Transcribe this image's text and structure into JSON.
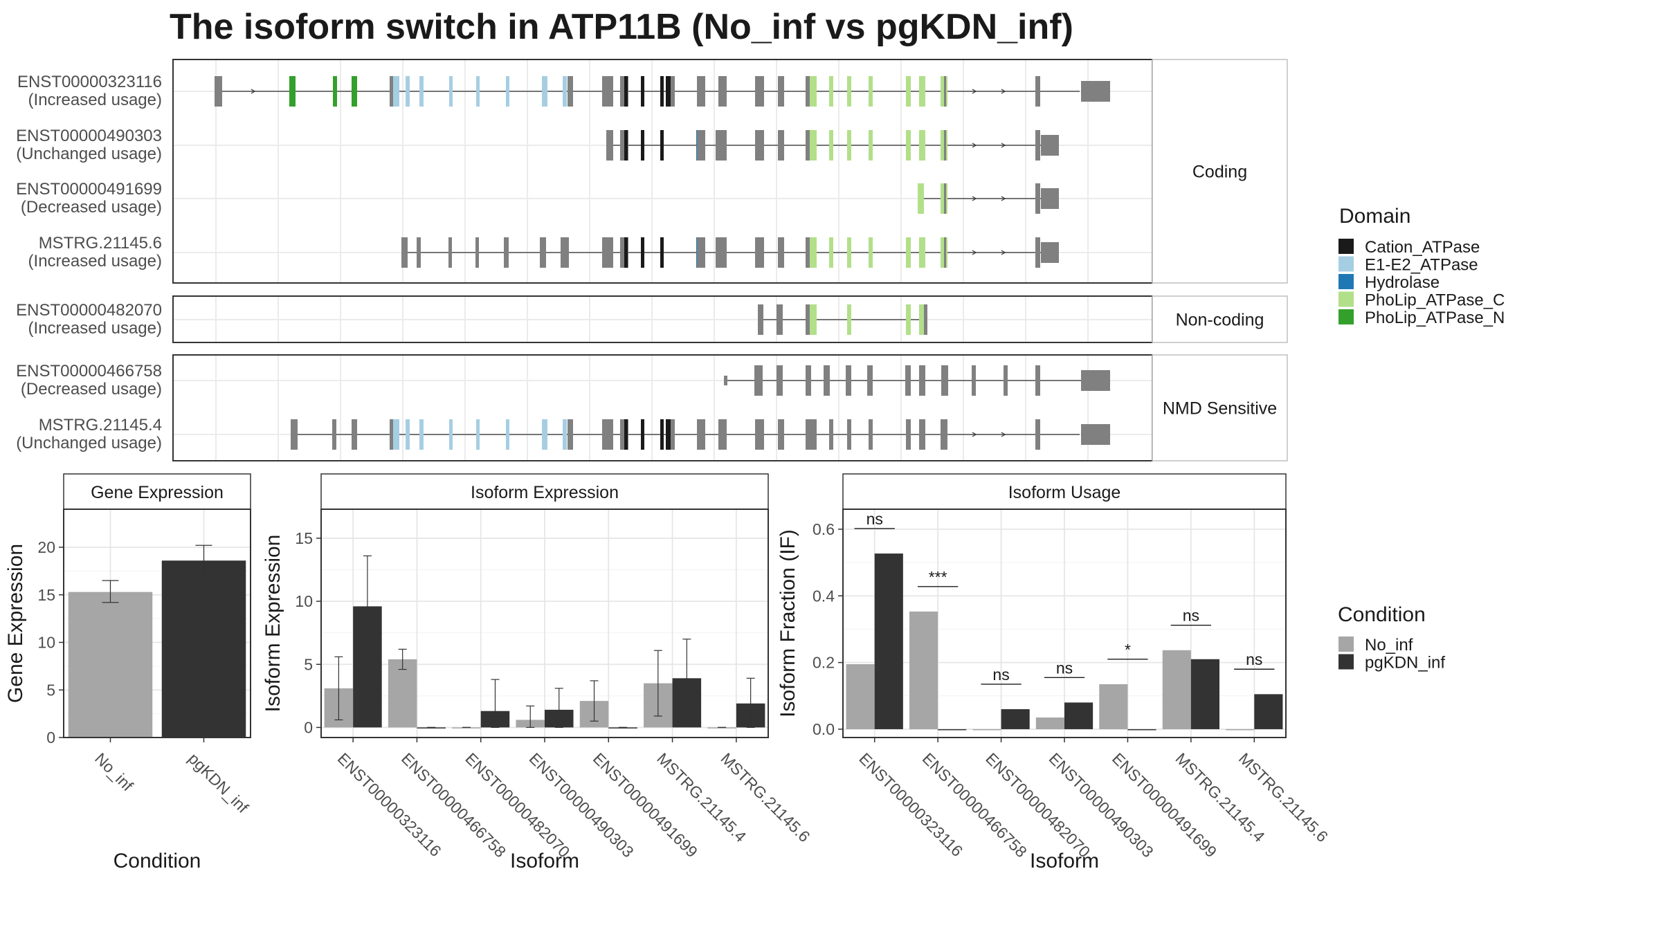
{
  "title": "The isoform switch in ATP11B (No_inf vs pgKDN_inf)",
  "colors": {
    "Cation_ATPase": "#1a1a1a",
    "E1-E2_ATPase": "#a6cee3",
    "Hydrolase": "#1f78b4",
    "PhoLip_ATPase_C": "#b2df8a",
    "PhoLip_ATPase_N": "#33a02c",
    "noDomain": "#808080",
    "No_inf": "#a6a6a6",
    "pgKDN_inf": "#333333"
  },
  "transcripts": {
    "groups": [
      {
        "label": "Coding",
        "rows": [
          {
            "name": "ENST00000323116",
            "usage": "(Increased usage)"
          },
          {
            "name": "ENST00000490303",
            "usage": "(Unchanged usage)"
          },
          {
            "name": "ENST00000491699",
            "usage": "(Decreased usage)"
          },
          {
            "name": "MSTRG.21145.6",
            "usage": "(Increased usage)"
          }
        ]
      },
      {
        "label": "Non-coding",
        "rows": [
          {
            "name": "ENST00000482070",
            "usage": "(Increased usage)"
          }
        ]
      },
      {
        "label": "NMD Sensitive",
        "rows": [
          {
            "name": "ENST00000466758",
            "usage": "(Decreased usage)"
          },
          {
            "name": "MSTRG.21145.4",
            "usage": "(Unchanged usage)"
          }
        ]
      }
    ]
  },
  "legends": {
    "domain": {
      "title": "Domain",
      "items": [
        {
          "label": "Cation_ATPase",
          "color": "#1a1a1a"
        },
        {
          "label": "E1-E2_ATPase",
          "color": "#a6cee3"
        },
        {
          "label": "Hydrolase",
          "color": "#1f78b4"
        },
        {
          "label": "PhoLip_ATPase_C",
          "color": "#b2df8a"
        },
        {
          "label": "PhoLip_ATPase_N",
          "color": "#33a02c"
        }
      ]
    },
    "condition": {
      "title": "Condition",
      "items": [
        {
          "label": "No_inf",
          "color": "#a6a6a6"
        },
        {
          "label": "pgKDN_inf",
          "color": "#333333"
        }
      ]
    }
  },
  "chart_data": [
    {
      "type": "bar",
      "title": "Gene Expression",
      "xlabel": "Condition",
      "ylabel": "Gene Expression",
      "categories": [
        "No_inf",
        "pgKDN_inf"
      ],
      "values": [
        15.3,
        18.6
      ],
      "errors": [
        [
          14.2,
          16.5
        ],
        [
          17.0,
          20.2
        ]
      ],
      "ylim": [
        0,
        24
      ],
      "yticks": [
        "0",
        "5",
        "10",
        "15",
        "20"
      ]
    },
    {
      "type": "bar",
      "title": "Isoform Expression",
      "xlabel": "Isoform",
      "ylabel": "Isoform Expression",
      "categories": [
        "ENST00000323116",
        "ENST00000466758",
        "ENST00000482070",
        "ENST00000490303",
        "ENST00000491699",
        "MSTRG.21145.4",
        "MSTRG.21145.6"
      ],
      "series": [
        {
          "name": "No_inf",
          "values": [
            3.1,
            5.4,
            0.0,
            0.6,
            2.1,
            3.5,
            0.0
          ],
          "errors": [
            [
              0.6,
              5.6
            ],
            [
              4.6,
              6.2
            ],
            [
              0,
              0
            ],
            [
              0.0,
              1.7
            ],
            [
              0.5,
              3.7
            ],
            [
              0.9,
              6.1
            ],
            [
              0,
              0
            ]
          ]
        },
        {
          "name": "pgKDN_inf",
          "values": [
            9.6,
            0.0,
            1.3,
            1.4,
            0.0,
            3.9,
            1.9
          ],
          "errors": [
            [
              5.6,
              13.6
            ],
            [
              0,
              0
            ],
            [
              0.0,
              3.8
            ],
            [
              0.0,
              3.1
            ],
            [
              0,
              0
            ],
            [
              0.5,
              7.0
            ],
            [
              0.0,
              3.9
            ]
          ]
        }
      ],
      "ylim": [
        -0.8,
        17.3
      ],
      "yticks": [
        "0",
        "5",
        "10",
        "15"
      ]
    },
    {
      "type": "bar",
      "title": "Isoform Usage",
      "xlabel": "Isoform",
      "ylabel": "Isoform Fraction (IF)",
      "categories": [
        "ENST00000323116",
        "ENST00000466758",
        "ENST00000482070",
        "ENST00000490303",
        "ENST00000491699",
        "MSTRG.21145.4",
        "MSTRG.21145.6"
      ],
      "series": [
        {
          "name": "No_inf",
          "values": [
            0.195,
            0.353,
            0.0,
            0.035,
            0.135,
            0.237,
            0.0
          ]
        },
        {
          "name": "pgKDN_inf",
          "values": [
            0.527,
            0.0,
            0.06,
            0.08,
            0.0,
            0.21,
            0.105
          ]
        }
      ],
      "significance": [
        "ns",
        "***",
        "ns",
        "ns",
        "*",
        "ns",
        "ns"
      ],
      "ylim": [
        -0.025,
        0.66
      ],
      "yticks": [
        "0.0",
        "0.2",
        "0.4",
        "0.6"
      ]
    }
  ]
}
